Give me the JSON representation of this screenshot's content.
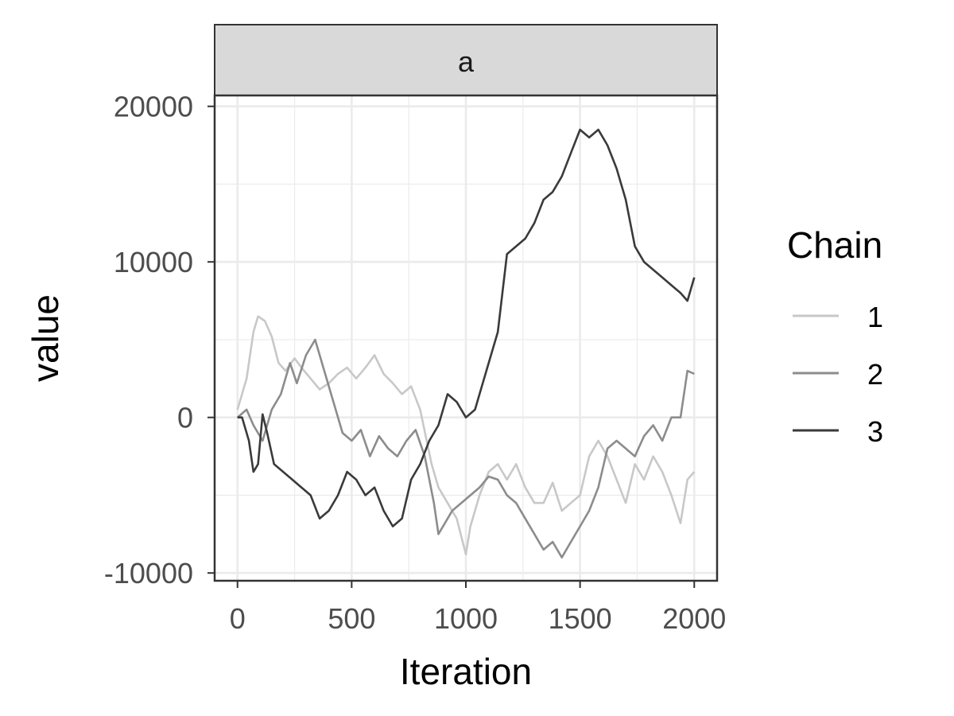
{
  "chart_data": {
    "type": "line",
    "facet_label": "a",
    "xlabel": "Iteration",
    "ylabel": "value",
    "xlim": [
      -100,
      2100
    ],
    "ylim": [
      -10500,
      20700
    ],
    "x_ticks": [
      0,
      500,
      1000,
      1500,
      2000
    ],
    "y_ticks": [
      -10000,
      0,
      10000,
      20000
    ],
    "x_tick_labels": [
      "0",
      "500",
      "1000",
      "1500",
      "2000"
    ],
    "y_tick_labels": [
      "-10000",
      "0",
      "10000",
      "20000"
    ],
    "grid": true,
    "legend": {
      "title": "Chain",
      "position": "right"
    },
    "series": [
      {
        "name": "1",
        "color": "#c8c8c8",
        "x": [
          0,
          40,
          70,
          90,
          120,
          150,
          180,
          210,
          250,
          280,
          320,
          360,
          400,
          440,
          480,
          520,
          560,
          600,
          640,
          680,
          720,
          760,
          800,
          850,
          880,
          920,
          960,
          1000,
          1020,
          1060,
          1100,
          1140,
          1180,
          1220,
          1260,
          1300,
          1340,
          1380,
          1420,
          1460,
          1500,
          1540,
          1580,
          1620,
          1660,
          1700,
          1740,
          1780,
          1820,
          1860,
          1900,
          1940,
          1970,
          2000
        ],
        "y": [
          500,
          2500,
          5500,
          6500,
          6200,
          5200,
          3500,
          3000,
          3800,
          3200,
          2500,
          1800,
          2200,
          2800,
          3200,
          2500,
          3200,
          4000,
          2800,
          2200,
          1500,
          2000,
          500,
          -3000,
          -4500,
          -5500,
          -6500,
          -8800,
          -7000,
          -5000,
          -3500,
          -3000,
          -4000,
          -3000,
          -4500,
          -5500,
          -5500,
          -4200,
          -6000,
          -5500,
          -5000,
          -2500,
          -1500,
          -2500,
          -4000,
          -5500,
          -3000,
          -4000,
          -2500,
          -3500,
          -5000,
          -6800,
          -4000,
          -3500
        ]
      },
      {
        "name": "2",
        "color": "#8c8c8c",
        "x": [
          0,
          40,
          70,
          110,
          150,
          190,
          230,
          260,
          300,
          340,
          380,
          420,
          460,
          500,
          540,
          580,
          620,
          660,
          700,
          740,
          780,
          820,
          860,
          880,
          900,
          940,
          980,
          1020,
          1060,
          1100,
          1140,
          1180,
          1220,
          1260,
          1300,
          1340,
          1380,
          1420,
          1460,
          1500,
          1540,
          1580,
          1620,
          1660,
          1700,
          1740,
          1780,
          1820,
          1860,
          1900,
          1940,
          1970,
          2000
        ],
        "y": [
          0,
          500,
          -500,
          -1500,
          500,
          1500,
          3500,
          2200,
          4000,
          5000,
          3000,
          1000,
          -1000,
          -1500,
          -800,
          -2500,
          -1200,
          -2000,
          -2500,
          -1500,
          -800,
          -2500,
          -5500,
          -7500,
          -7000,
          -6000,
          -5500,
          -5000,
          -4500,
          -3800,
          -4000,
          -5000,
          -5500,
          -6500,
          -7500,
          -8500,
          -8000,
          -9000,
          -8000,
          -7000,
          -6000,
          -4500,
          -2000,
          -1500,
          -2000,
          -2500,
          -1200,
          -500,
          -1500,
          0,
          0,
          3000,
          2800
        ]
      },
      {
        "name": "3",
        "color": "#3a3a3a",
        "x": [
          0,
          20,
          50,
          70,
          90,
          110,
          130,
          160,
          200,
          240,
          280,
          320,
          360,
          400,
          440,
          480,
          520,
          560,
          600,
          640,
          680,
          720,
          760,
          800,
          840,
          880,
          920,
          960,
          1000,
          1040,
          1060,
          1100,
          1140,
          1180,
          1220,
          1260,
          1300,
          1340,
          1380,
          1420,
          1460,
          1500,
          1540,
          1580,
          1620,
          1660,
          1700,
          1740,
          1780,
          1820,
          1860,
          1900,
          1940,
          1970,
          2000
        ],
        "y": [
          0,
          0,
          -1500,
          -3500,
          -3000,
          200,
          -1000,
          -3000,
          -3500,
          -4000,
          -4500,
          -5000,
          -6500,
          -6000,
          -5000,
          -3500,
          -4000,
          -5000,
          -4500,
          -6000,
          -7000,
          -6500,
          -4000,
          -3000,
          -1500,
          -500,
          1500,
          1000,
          0,
          500,
          1500,
          3500,
          5500,
          10500,
          11000,
          11500,
          12500,
          14000,
          14500,
          15500,
          17000,
          18500,
          18000,
          18500,
          17500,
          16000,
          14000,
          11000,
          10000,
          9500,
          9000,
          8500,
          8000,
          7500,
          9000
        ]
      }
    ]
  }
}
